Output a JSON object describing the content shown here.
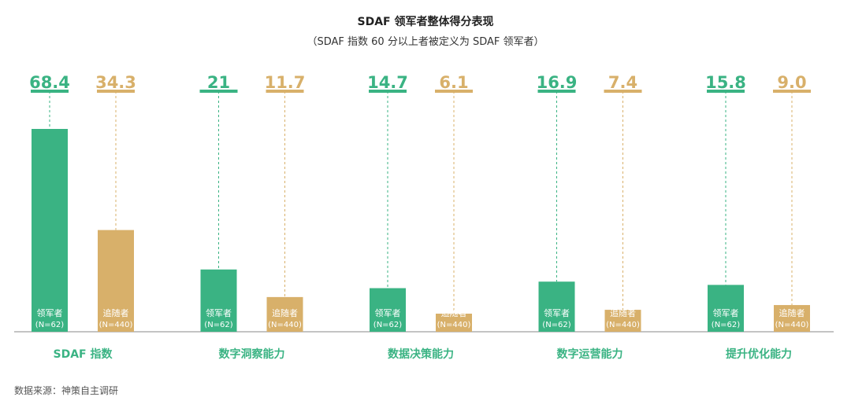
{
  "chart_data": {
    "type": "bar",
    "title": "SDAF 领军者整体得分表现",
    "subtitle": "（SDAF 指数 60 分以上者被定义为 SDAF 领军者）",
    "categories": [
      "SDAF 指数",
      "数字洞察能力",
      "数据决策能力",
      "数字运营能力",
      "提升优化能力"
    ],
    "series": [
      {
        "name": "领军者",
        "label_line2": "(N=62)",
        "color": "#3ab383",
        "values": [
          68.4,
          21,
          14.7,
          16.9,
          15.8
        ],
        "value_labels": [
          "68.4",
          "21",
          "14.7",
          "16.9",
          "15.8"
        ]
      },
      {
        "name": "追随者",
        "label_line2": "(N=440)",
        "color": "#d8b06a",
        "values": [
          34.3,
          11.7,
          6.1,
          7.4,
          9.0
        ],
        "value_labels": [
          "34.3",
          "11.7",
          "6.1",
          "7.4",
          "9.0"
        ]
      }
    ],
    "category_label_color": "#3ab383",
    "axis_color": "#888888"
  },
  "source": "数据来源：神策自主调研"
}
